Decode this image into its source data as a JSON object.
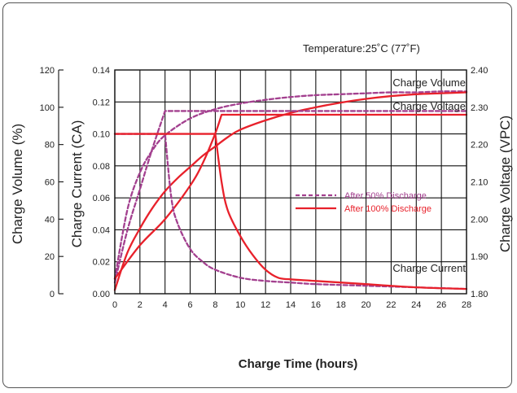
{
  "chart_data": {
    "type": "line",
    "title": "",
    "subtitle": "Temperature:25˚C (77˚F)",
    "xlabel": "Charge Time (hours)",
    "xlim": [
      0,
      28
    ],
    "xticks": [
      "0",
      "2",
      "4",
      "6",
      "8",
      "10",
      "12",
      "14",
      "16",
      "18",
      "20",
      "22",
      "24",
      "26",
      "28"
    ],
    "axes": {
      "volume": {
        "label": "Charge Volume (%)",
        "range": [
          0,
          120
        ],
        "ticks": [
          "0",
          "20",
          "40",
          "60",
          "80",
          "100",
          "120"
        ]
      },
      "current": {
        "label": "Charge Current (CA)",
        "range": [
          0,
          0.14
        ],
        "ticks": [
          "0.00",
          "0.02",
          "0.04",
          "0.06",
          "0.08",
          "0.10",
          "0.12",
          "0.14"
        ]
      },
      "voltage": {
        "label": "Charge Voltage (VPC)",
        "range": [
          1.8,
          2.4
        ],
        "ticks": [
          "1.80",
          "1.90",
          "2.00",
          "2.10",
          "2.20",
          "2.30",
          "2.40"
        ]
      }
    },
    "grid": true,
    "annotations": {
      "volume": "Charge Volume",
      "voltage": "Charge Voltage",
      "current": "Charge Current"
    },
    "legend": {
      "placement": "center-right",
      "entries": [
        {
          "label": "After 50% Discharge",
          "style": "dashed",
          "color": "#a3408f"
        },
        {
          "label": "After 100% Discharge",
          "style": "solid",
          "color": "#e8212b"
        }
      ]
    },
    "series": [
      {
        "name": "After 50% Discharge",
        "quantity": "Charge Volume",
        "axis": "volume",
        "x": [
          0,
          1,
          2,
          3,
          4,
          6,
          8,
          10,
          12,
          14,
          16,
          18,
          20,
          22,
          24,
          26,
          28
        ],
        "y": [
          8,
          45,
          65,
          77,
          85,
          94,
          99,
          102,
          104,
          105.5,
          106.5,
          107,
          107.5,
          108,
          108,
          108.5,
          108.5
        ]
      },
      {
        "name": "After 100% Discharge",
        "quantity": "Charge Volume",
        "axis": "volume",
        "x": [
          0,
          1,
          2,
          3,
          4,
          5,
          6,
          7,
          8,
          9,
          10,
          12,
          14,
          16,
          18,
          20,
          22,
          24,
          26,
          28
        ],
        "y": [
          2,
          22,
          35,
          46,
          55,
          62,
          68,
          74,
          79,
          84,
          88,
          93,
          97,
          100,
          102.5,
          104.5,
          106,
          107,
          107.5,
          108
        ]
      },
      {
        "name": "After 50% Discharge",
        "quantity": "Charge Voltage",
        "axis": "voltage",
        "x": [
          0,
          1,
          2,
          3,
          4,
          28
        ],
        "y": [
          1.83,
          1.97,
          2.08,
          2.19,
          2.29,
          2.29
        ]
      },
      {
        "name": "After 100% Discharge",
        "quantity": "Charge Voltage",
        "axis": "voltage",
        "x": [
          0,
          2,
          4,
          6,
          7,
          8,
          8.5,
          28
        ],
        "y": [
          1.84,
          1.93,
          2.0,
          2.09,
          2.15,
          2.23,
          2.28,
          2.28
        ]
      },
      {
        "name": "After 50% Discharge",
        "quantity": "Charge Current",
        "axis": "current",
        "x": [
          0,
          4,
          4.5,
          5,
          6,
          7,
          8,
          10,
          12,
          14,
          16,
          20,
          24,
          28
        ],
        "y": [
          0.1,
          0.1,
          0.06,
          0.044,
          0.028,
          0.02,
          0.015,
          0.01,
          0.008,
          0.007,
          0.006,
          0.005,
          0.004,
          0.003
        ]
      },
      {
        "name": "After 100% Discharge",
        "quantity": "Charge Current",
        "axis": "current",
        "x": [
          0,
          8,
          8.5,
          9,
          10,
          11,
          12,
          13,
          14,
          16,
          20,
          24,
          28
        ],
        "y": [
          0.1,
          0.1,
          0.07,
          0.052,
          0.036,
          0.024,
          0.015,
          0.01,
          0.009,
          0.008,
          0.006,
          0.004,
          0.003
        ]
      }
    ]
  }
}
